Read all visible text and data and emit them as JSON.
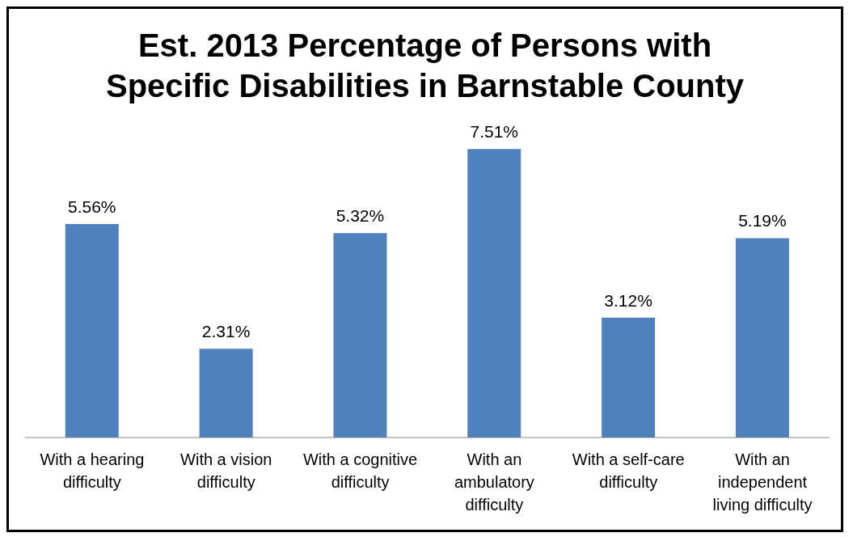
{
  "chart_data": {
    "type": "bar",
    "title": "Est. 2013 Percentage of Persons with Specific Disabilities in Barnstable County",
    "categories": [
      "With a hearing difficulty",
      "With a vision difficulty",
      "With a cognitive difficulty",
      "With an ambulatory difficulty",
      "With a self-care difficulty",
      "With an independent living difficulty"
    ],
    "values": [
      5.56,
      2.31,
      5.32,
      7.51,
      3.12,
      5.19
    ],
    "value_labels": [
      "5.56%",
      "2.31%",
      "5.32%",
      "7.51%",
      "3.12%",
      "5.19%"
    ],
    "color": "#4f81bd",
    "grid": false,
    "legend": false
  }
}
